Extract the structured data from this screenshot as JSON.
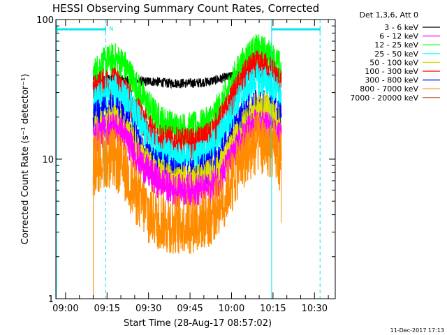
{
  "chart_data": {
    "type": "line",
    "title": "HESSI Observing Summary Count Rates, Corrected",
    "xlabel": "Start Time (28-Aug-17 08:57:02)",
    "ylabel": "Corrected Count Rate (s⁻¹ detector⁻¹)",
    "yscale": "log",
    "ylim": [
      1,
      100
    ],
    "y_ticks": [
      {
        "value": 1,
        "label": "1"
      },
      {
        "value": 10,
        "label": "10"
      },
      {
        "value": 100,
        "label": "100"
      }
    ],
    "x_ticks": [
      {
        "value": 3,
        "label": "09:00"
      },
      {
        "value": 18,
        "label": "09:15"
      },
      {
        "value": 33,
        "label": "09:30"
      },
      {
        "value": 48,
        "label": "09:45"
      },
      {
        "value": 63,
        "label": "10:00"
      },
      {
        "value": 78,
        "label": "10:15"
      },
      {
        "value": 93,
        "label": "10:30"
      }
    ],
    "xlim": [
      -0.5,
      100.5
    ],
    "legend_title": "Det 1,3,6, Att 0",
    "legend_position": "right",
    "annotations": [
      {
        "text": "N",
        "x": 19.5
      }
    ],
    "night_intervals": [
      [
        0,
        17.5
      ],
      [
        77.5,
        95
      ]
    ],
    "saa_markers": [
      17.5,
      95
    ],
    "data_x_range": [
      13,
      81
    ],
    "series": [
      {
        "name": "3 - 6 keV",
        "color": "#000000",
        "x": [
          13,
          20,
          25,
          30,
          35,
          40,
          45,
          50,
          55,
          60,
          65,
          70,
          75,
          80
        ],
        "y": [
          38,
          38,
          37,
          36,
          36,
          35,
          35,
          35,
          36,
          38,
          40,
          41,
          40,
          39
        ]
      },
      {
        "name": "6 - 12 keV",
        "color": "#ff00ff",
        "x": [
          13,
          15,
          18,
          21,
          24,
          27,
          30,
          33,
          36,
          39,
          42,
          45,
          48,
          51,
          54,
          57,
          60,
          63,
          66,
          69,
          72,
          75,
          78,
          81
        ],
        "y": [
          14,
          15,
          16.5,
          17,
          15,
          12,
          9.5,
          8,
          7,
          6.5,
          6,
          6,
          6,
          6,
          6,
          6.5,
          8,
          10,
          13,
          16,
          17.5,
          17,
          16,
          14
        ]
      },
      {
        "name": "12 - 25 keV",
        "color": "#00ff00",
        "x": [
          13,
          15,
          18,
          21,
          24,
          27,
          30,
          33,
          36,
          39,
          42,
          45,
          48,
          51,
          54,
          57,
          60,
          63,
          66,
          69,
          72,
          75,
          78,
          81
        ],
        "y": [
          40,
          45,
          50,
          52,
          48,
          38,
          30,
          24,
          20,
          18,
          17,
          16.5,
          16.5,
          17,
          18,
          21,
          26,
          35,
          45,
          55,
          60,
          58,
          52,
          44
        ]
      },
      {
        "name": "25 - 50 keV",
        "color": "#00ffff",
        "x": [
          13,
          15,
          18,
          21,
          24,
          27,
          30,
          33,
          36,
          39,
          42,
          45,
          48,
          51,
          54,
          57,
          60,
          63,
          66,
          69,
          72,
          75,
          78,
          81
        ],
        "y": [
          24,
          27,
          30,
          31,
          28,
          23,
          18,
          14,
          12,
          11,
          10.5,
          10,
          10,
          10.5,
          11,
          13,
          16,
          21,
          27,
          33,
          37,
          36,
          33,
          27
        ]
      },
      {
        "name": "50 - 100 keV",
        "color": "#dddd00",
        "x": [
          13,
          15,
          18,
          21,
          24,
          27,
          30,
          33,
          36,
          39,
          42,
          45,
          48,
          51,
          54,
          57,
          60,
          63,
          66,
          69,
          72,
          75,
          78,
          81
        ],
        "y": [
          16,
          17.5,
          19,
          19.5,
          17,
          14,
          11,
          9,
          8,
          7.5,
          7,
          7,
          7,
          7,
          7.5,
          8,
          9.5,
          12,
          16,
          20,
          23,
          23,
          21,
          17
        ]
      },
      {
        "name": "100 - 300 keV",
        "color": "#ff0000",
        "x": [
          13,
          15,
          18,
          21,
          24,
          27,
          30,
          33,
          36,
          39,
          42,
          45,
          48,
          51,
          54,
          57,
          60,
          63,
          66,
          69,
          72,
          75,
          78,
          81
        ],
        "y": [
          30,
          33,
          35,
          35,
          31,
          25,
          20,
          16.5,
          14.5,
          13.5,
          13,
          12.8,
          12.8,
          13,
          14,
          16,
          20,
          26,
          34,
          42,
          46,
          45,
          41,
          33
        ]
      },
      {
        "name": "300 - 800 keV",
        "color": "#0000ff",
        "x": [
          13,
          15,
          18,
          21,
          24,
          27,
          30,
          33,
          36,
          39,
          42,
          45,
          48,
          51,
          54,
          57,
          60,
          63,
          66,
          69,
          72,
          75,
          78,
          81
        ],
        "y": [
          19,
          20.5,
          22,
          22,
          19.5,
          15.5,
          12,
          10,
          9,
          8.5,
          8,
          7.8,
          7.8,
          8,
          8.5,
          9.5,
          11.5,
          14.5,
          18.5,
          22,
          24,
          23.5,
          22,
          19
        ]
      },
      {
        "name": "800 - 7000 keV",
        "color": "#ff8c00",
        "x": [
          13,
          15,
          18,
          21,
          24,
          27,
          30,
          33,
          36,
          39,
          42,
          45,
          48,
          51,
          54,
          57,
          60,
          63,
          66,
          69,
          72,
          75,
          78,
          81
        ],
        "y": [
          9,
          9.8,
          10.5,
          10,
          8.5,
          6.5,
          5,
          4.2,
          3.8,
          3.6,
          3.5,
          3.5,
          3.5,
          3.6,
          3.8,
          4.3,
          5.3,
          7,
          9,
          11.5,
          13,
          13,
          12,
          9.5
        ]
      },
      {
        "name": "7000 - 20000 keV",
        "color": "#a0522d",
        "x": [],
        "y": []
      }
    ],
    "grid": false
  },
  "footer": {
    "timestamp": "11-Dec-2017 17:13"
  }
}
